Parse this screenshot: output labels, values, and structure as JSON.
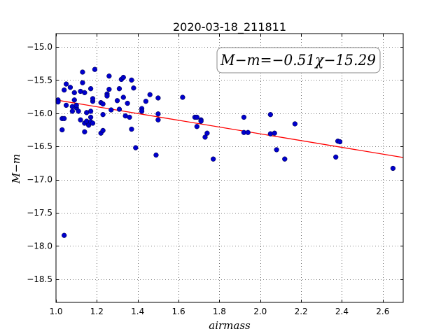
{
  "chart_data": {
    "type": "scatter",
    "title": "2020-03-18_211811",
    "xlabel": "airmass",
    "ylabel": "M−m",
    "xlim": [
      1.0,
      2.7
    ],
    "ylim": [
      -18.85,
      -14.8
    ],
    "y_inverted": true,
    "grid": true,
    "x_ticks": [
      1.0,
      1.2,
      1.4,
      1.6,
      1.8,
      2.0,
      2.2,
      2.4,
      2.6
    ],
    "x_tick_labels": [
      "1.0",
      "1.2",
      "1.4",
      "1.6",
      "1.8",
      "2.0",
      "2.2",
      "2.4",
      "2.6"
    ],
    "y_ticks": [
      -15.0,
      -15.5,
      -16.0,
      -16.5,
      -17.0,
      -17.5,
      -18.0,
      -18.5
    ],
    "y_tick_labels": [
      "−15.0",
      "−15.5",
      "−16.0",
      "−16.5",
      "−17.0",
      "−17.5",
      "−18.0",
      "−18.5"
    ],
    "annotation": "M−m=−0.51χ−15.29",
    "fit": {
      "slope": -0.51,
      "intercept": -15.29,
      "color": "#ff0000"
    },
    "point_color": "#0000cc",
    "points": [
      [
        1.01,
        -15.8
      ],
      [
        1.01,
        -15.83
      ],
      [
        1.03,
        -16.08
      ],
      [
        1.03,
        -16.25
      ],
      [
        1.04,
        -15.65
      ],
      [
        1.04,
        -16.08
      ],
      [
        1.04,
        -17.84
      ],
      [
        1.05,
        -15.56
      ],
      [
        1.05,
        -15.88
      ],
      [
        1.07,
        -15.61
      ],
      [
        1.08,
        -15.9
      ],
      [
        1.08,
        -15.97
      ],
      [
        1.09,
        -15.69
      ],
      [
        1.09,
        -15.8
      ],
      [
        1.1,
        -15.92
      ],
      [
        1.1,
        -15.88
      ],
      [
        1.11,
        -15.97
      ],
      [
        1.12,
        -16.1
      ],
      [
        1.12,
        -15.67
      ],
      [
        1.13,
        -15.38
      ],
      [
        1.13,
        -15.54
      ],
      [
        1.14,
        -15.69
      ],
      [
        1.14,
        -16.15
      ],
      [
        1.14,
        -16.28
      ],
      [
        1.15,
        -15.99
      ],
      [
        1.15,
        -16.12
      ],
      [
        1.16,
        -16.18
      ],
      [
        1.17,
        -15.63
      ],
      [
        1.17,
        -15.97
      ],
      [
        1.17,
        -16.06
      ],
      [
        1.17,
        -16.13
      ],
      [
        1.18,
        -16.15
      ],
      [
        1.18,
        -15.82
      ],
      [
        1.18,
        -15.78
      ],
      [
        1.19,
        -15.34
      ],
      [
        1.22,
        -15.84
      ],
      [
        1.22,
        -16.3
      ],
      [
        1.23,
        -15.86
      ],
      [
        1.23,
        -16.26
      ],
      [
        1.23,
        -16.02
      ],
      [
        1.25,
        -15.71
      ],
      [
        1.25,
        -15.74
      ],
      [
        1.26,
        -15.44
      ],
      [
        1.26,
        -15.64
      ],
      [
        1.27,
        -15.95
      ],
      [
        1.3,
        -15.81
      ],
      [
        1.31,
        -15.63
      ],
      [
        1.31,
        -15.94
      ],
      [
        1.32,
        -15.49
      ],
      [
        1.33,
        -15.46
      ],
      [
        1.33,
        -15.76
      ],
      [
        1.34,
        -16.04
      ],
      [
        1.35,
        -15.85
      ],
      [
        1.36,
        -16.06
      ],
      [
        1.37,
        -15.5
      ],
      [
        1.37,
        -16.24
      ],
      [
        1.38,
        -15.62
      ],
      [
        1.39,
        -16.52
      ],
      [
        1.42,
        -15.93
      ],
      [
        1.42,
        -15.97
      ],
      [
        1.44,
        -15.82
      ],
      [
        1.46,
        -15.72
      ],
      [
        1.49,
        -16.63
      ],
      [
        1.5,
        -16.01
      ],
      [
        1.5,
        -16.1
      ],
      [
        1.5,
        -15.77
      ],
      [
        1.62,
        -15.76
      ],
      [
        1.68,
        -16.06
      ],
      [
        1.69,
        -16.06
      ],
      [
        1.69,
        -16.2
      ],
      [
        1.71,
        -16.1
      ],
      [
        1.71,
        -16.12
      ],
      [
        1.73,
        -16.36
      ],
      [
        1.74,
        -16.3
      ],
      [
        1.77,
        -16.69
      ],
      [
        1.92,
        -16.06
      ],
      [
        1.92,
        -16.29
      ],
      [
        1.94,
        -16.29
      ],
      [
        2.05,
        -16.02
      ],
      [
        2.05,
        -16.31
      ],
      [
        2.07,
        -16.3
      ],
      [
        2.08,
        -16.55
      ],
      [
        2.12,
        -16.69
      ],
      [
        2.17,
        -16.16
      ],
      [
        2.37,
        -16.66
      ],
      [
        2.38,
        -16.42
      ],
      [
        2.39,
        -16.43
      ],
      [
        2.65,
        -16.83
      ]
    ]
  }
}
